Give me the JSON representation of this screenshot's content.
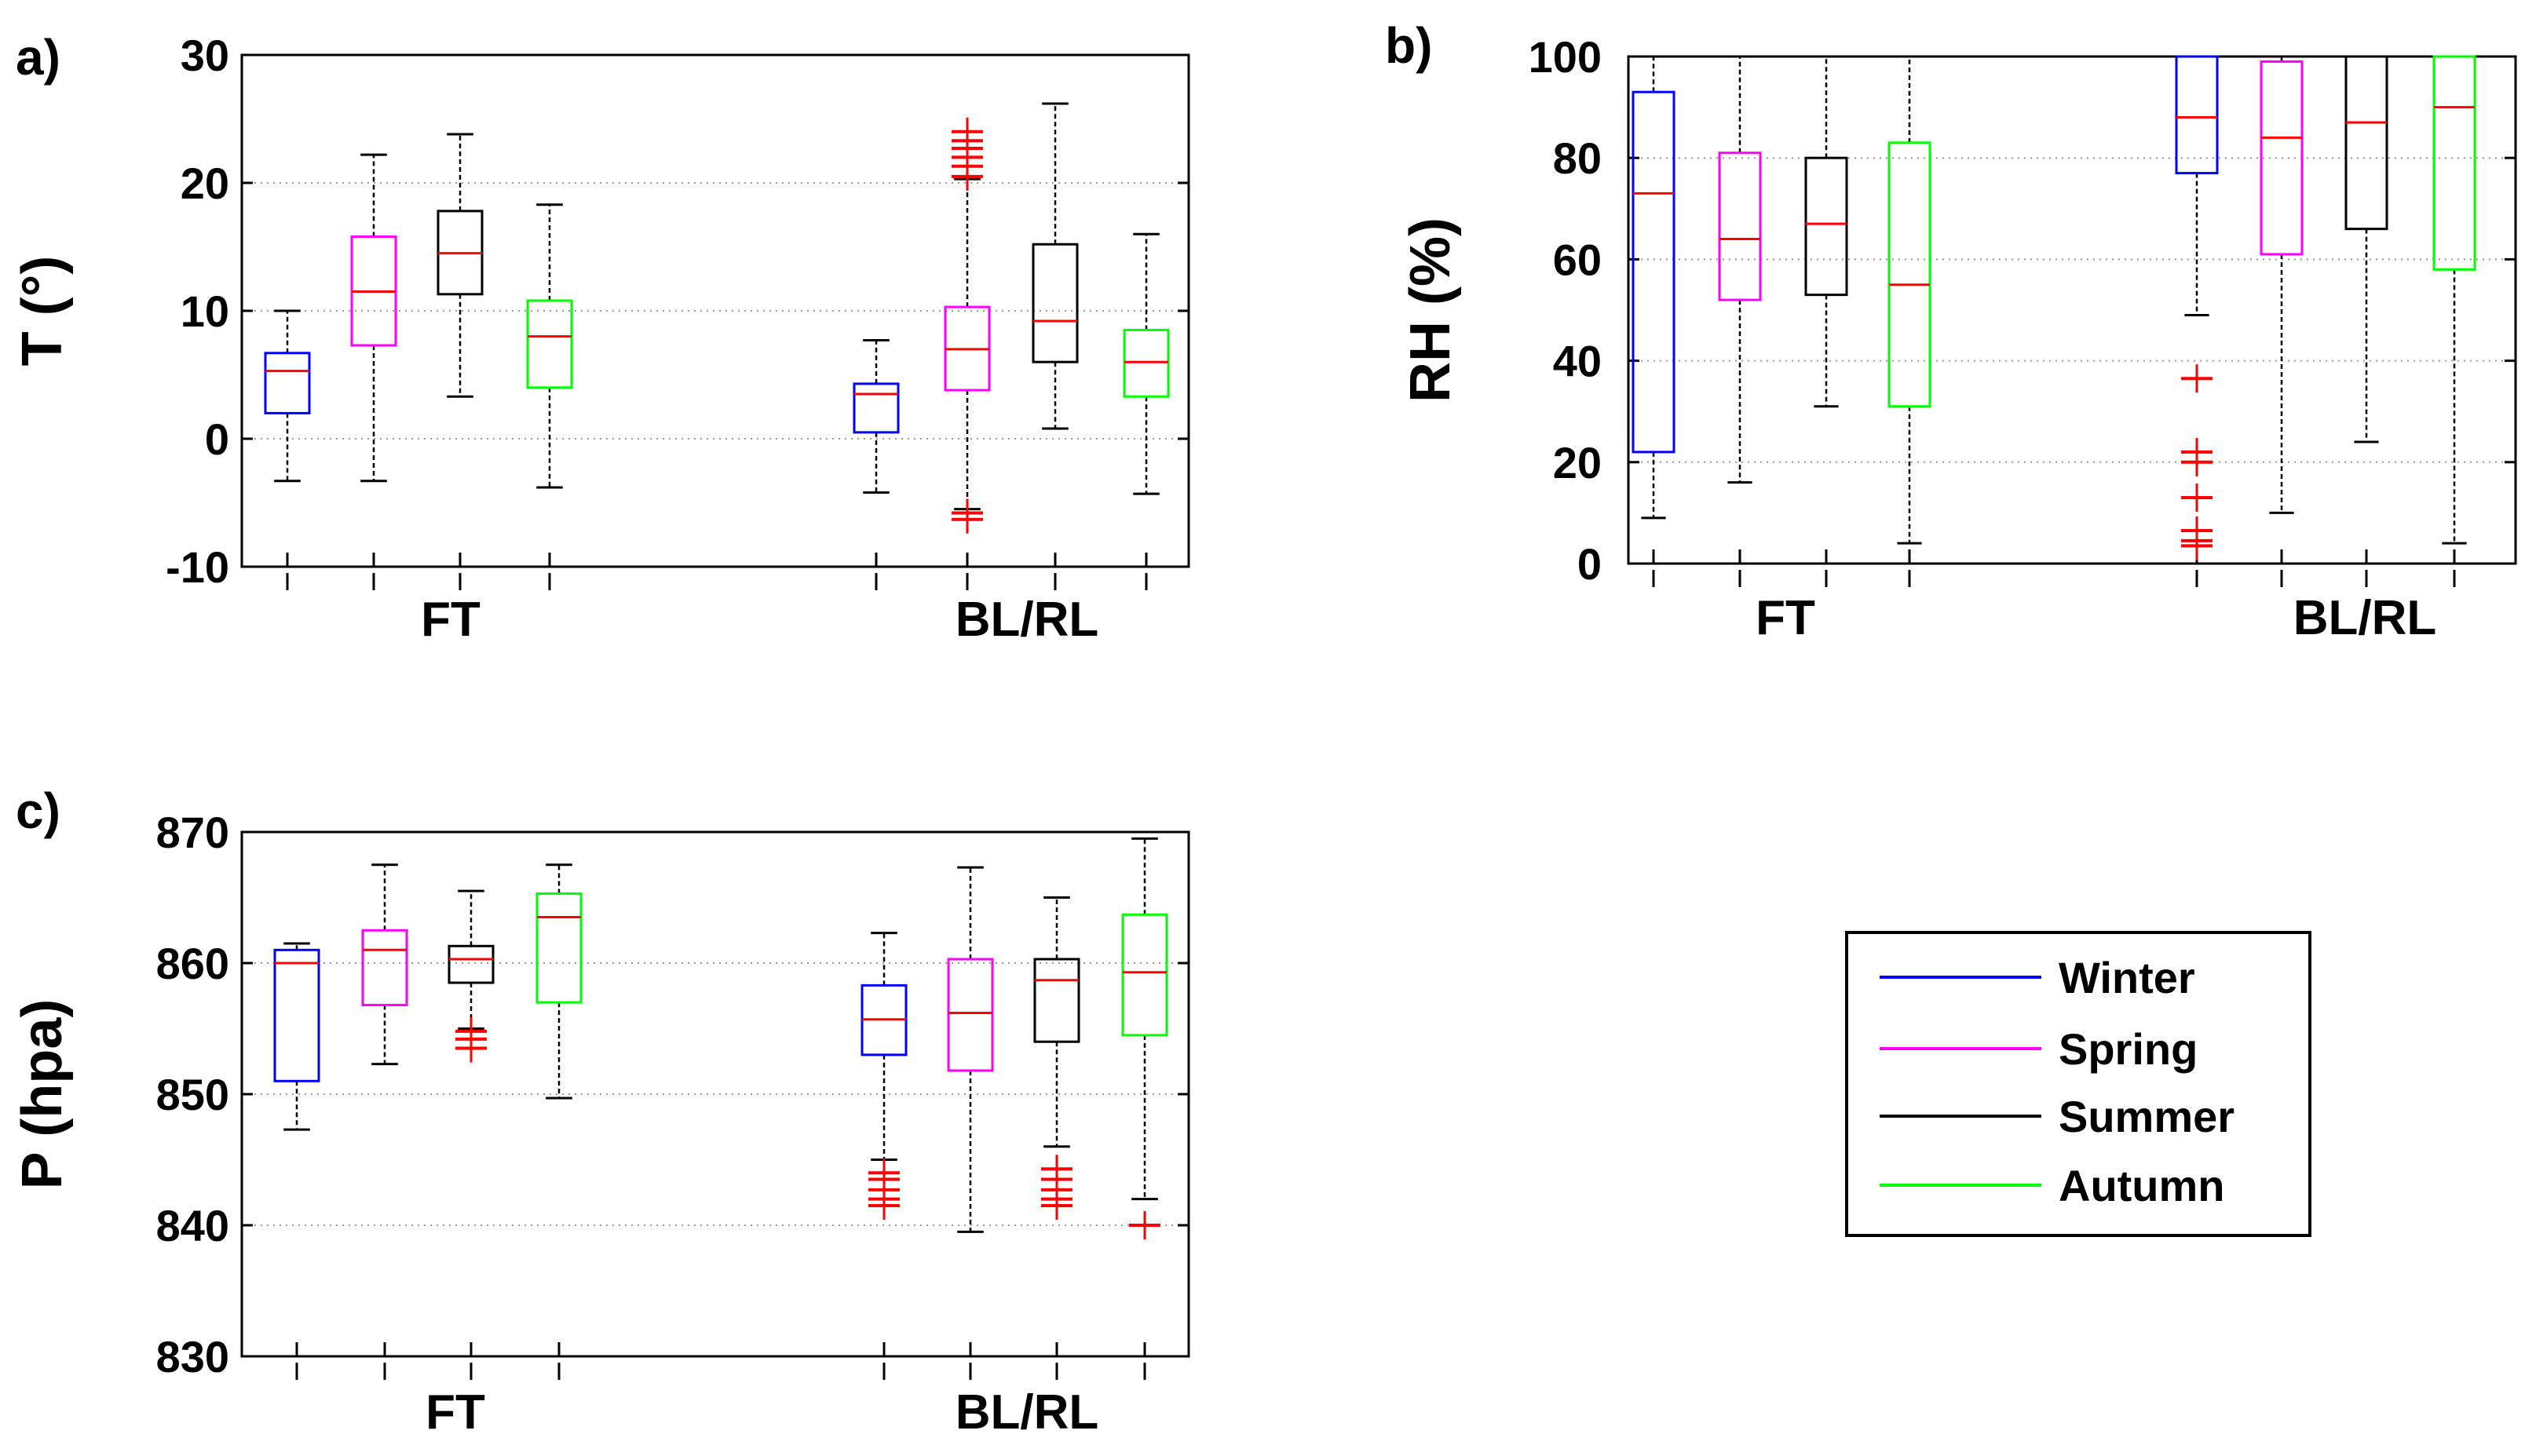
{
  "chart_data": [
    {
      "type": "boxplot",
      "id": "a",
      "panel_label": "a)",
      "ylabel": "T (°)",
      "ylim": [
        -10,
        30
      ],
      "yticks": [
        -10,
        0,
        10,
        20,
        30
      ],
      "grid": true,
      "groups": [
        "FT",
        "BL/RL"
      ],
      "series": [
        {
          "name": "Winter",
          "group": "FT",
          "whisker_low": -3.3,
          "q1": 2.0,
          "median": 5.3,
          "q3": 6.7,
          "whisker_high": 10.0,
          "outliers": []
        },
        {
          "name": "Spring",
          "group": "FT",
          "whisker_low": -3.3,
          "q1": 7.3,
          "median": 11.5,
          "q3": 15.8,
          "whisker_high": 22.2,
          "outliers": []
        },
        {
          "name": "Summer",
          "group": "FT",
          "whisker_low": 3.3,
          "q1": 11.3,
          "median": 14.5,
          "q3": 17.8,
          "whisker_high": 23.8,
          "outliers": []
        },
        {
          "name": "Autumn",
          "group": "FT",
          "whisker_low": -3.8,
          "q1": 4.0,
          "median": 8.0,
          "q3": 10.8,
          "whisker_high": 18.3,
          "outliers": []
        },
        {
          "name": "Winter",
          "group": "BL/RL",
          "whisker_low": -4.2,
          "q1": 0.5,
          "median": 3.5,
          "q3": 4.3,
          "whisker_high": 7.7,
          "outliers": []
        },
        {
          "name": "Spring",
          "group": "BL/RL",
          "whisker_low": -5.5,
          "q1": 3.8,
          "median": 7.0,
          "q3": 10.3,
          "whisker_high": 20.3,
          "outliers": [
            -6.3,
            -5.8,
            20.5,
            21.3,
            22.0,
            22.7,
            23.3,
            24.0
          ]
        },
        {
          "name": "Summer",
          "group": "BL/RL",
          "whisker_low": 0.8,
          "q1": 6.0,
          "median": 9.2,
          "q3": 15.2,
          "whisker_high": 26.2,
          "outliers": []
        },
        {
          "name": "Autumn",
          "group": "BL/RL",
          "whisker_low": -4.3,
          "q1": 3.3,
          "median": 6.0,
          "q3": 8.5,
          "whisker_high": 16.0,
          "outliers": []
        }
      ]
    },
    {
      "type": "boxplot",
      "id": "b",
      "panel_label": "b)",
      "ylabel": "RH (%)",
      "ylim": [
        0,
        100
      ],
      "yticks": [
        0,
        20,
        40,
        60,
        80,
        100
      ],
      "grid": true,
      "groups": [
        "FT",
        "BL/RL"
      ],
      "series": [
        {
          "name": "Winter",
          "group": "FT",
          "whisker_low": 9,
          "q1": 22,
          "median": 73,
          "q3": 93,
          "whisker_high": 100,
          "outliers": []
        },
        {
          "name": "Spring",
          "group": "FT",
          "whisker_low": 16,
          "q1": 52,
          "median": 64,
          "q3": 81,
          "whisker_high": 100,
          "outliers": []
        },
        {
          "name": "Summer",
          "group": "FT",
          "whisker_low": 31,
          "q1": 53,
          "median": 67,
          "q3": 80,
          "whisker_high": 100,
          "outliers": []
        },
        {
          "name": "Autumn",
          "group": "FT",
          "whisker_low": 4,
          "q1": 31,
          "median": 55,
          "q3": 83,
          "whisker_high": 100,
          "outliers": []
        },
        {
          "name": "Winter",
          "group": "BL/RL",
          "whisker_low": 49,
          "q1": 77,
          "median": 88,
          "q3": 100,
          "whisker_high": 100,
          "outliers": [
            3.5,
            4.5,
            6.5,
            13,
            20,
            22,
            36.5
          ]
        },
        {
          "name": "Spring",
          "group": "BL/RL",
          "whisker_low": 10,
          "q1": 61,
          "median": 84,
          "q3": 99,
          "whisker_high": 100,
          "outliers": []
        },
        {
          "name": "Summer",
          "group": "BL/RL",
          "whisker_low": 24,
          "q1": 66,
          "median": 87,
          "q3": 100,
          "whisker_high": 100,
          "outliers": []
        },
        {
          "name": "Autumn",
          "group": "BL/RL",
          "whisker_low": 4,
          "q1": 58,
          "median": 90,
          "q3": 100,
          "whisker_high": 100,
          "outliers": []
        }
      ]
    },
    {
      "type": "boxplot",
      "id": "c",
      "panel_label": "c)",
      "ylabel": "P (hpa)",
      "ylim": [
        830,
        870
      ],
      "yticks": [
        830,
        840,
        850,
        860,
        870
      ],
      "grid": true,
      "groups": [
        "FT",
        "BL/RL"
      ],
      "series": [
        {
          "name": "Winter",
          "group": "FT",
          "whisker_low": 847.3,
          "q1": 851.0,
          "median": 860.0,
          "q3": 861.0,
          "whisker_high": 861.5,
          "outliers": []
        },
        {
          "name": "Spring",
          "group": "FT",
          "whisker_low": 852.3,
          "q1": 856.8,
          "median": 861.0,
          "q3": 862.5,
          "whisker_high": 867.5,
          "outliers": []
        },
        {
          "name": "Summer",
          "group": "FT",
          "whisker_low": 855.0,
          "q1": 858.5,
          "median": 860.3,
          "q3": 861.3,
          "whisker_high": 865.5,
          "outliers": [
            853.5,
            854.2,
            854.8
          ]
        },
        {
          "name": "Autumn",
          "group": "FT",
          "whisker_low": 849.7,
          "q1": 857.0,
          "median": 863.5,
          "q3": 865.3,
          "whisker_high": 867.5,
          "outliers": []
        },
        {
          "name": "Winter",
          "group": "BL/RL",
          "whisker_low": 845.0,
          "q1": 853.0,
          "median": 855.7,
          "q3": 858.3,
          "whisker_high": 862.3,
          "outliers": [
            841.5,
            842.0,
            842.7,
            843.5,
            844.0
          ]
        },
        {
          "name": "Spring",
          "group": "BL/RL",
          "whisker_low": 839.5,
          "q1": 851.8,
          "median": 856.2,
          "q3": 860.3,
          "whisker_high": 867.3,
          "outliers": []
        },
        {
          "name": "Summer",
          "group": "BL/RL",
          "whisker_low": 846.0,
          "q1": 854.0,
          "median": 858.7,
          "q3": 860.3,
          "whisker_high": 865.0,
          "outliers": [
            841.5,
            842.0,
            842.7,
            843.5,
            844.3
          ]
        },
        {
          "name": "Autumn",
          "group": "BL/RL",
          "whisker_low": 842.0,
          "q1": 854.5,
          "median": 859.3,
          "q3": 863.7,
          "whisker_high": 869.5,
          "outliers": [
            840.0
          ]
        }
      ]
    }
  ],
  "legend": {
    "items": [
      {
        "name": "Winter",
        "color": "#0000ff"
      },
      {
        "name": "Spring",
        "color": "#ff00ff"
      },
      {
        "name": "Summer",
        "color": "#000000"
      },
      {
        "name": "Autumn",
        "color": "#00ff00"
      }
    ]
  },
  "colors": {
    "median": "#ff0000",
    "outlier": "#ff0000",
    "whisker": "#000000",
    "grid": "#9a9a9a"
  }
}
